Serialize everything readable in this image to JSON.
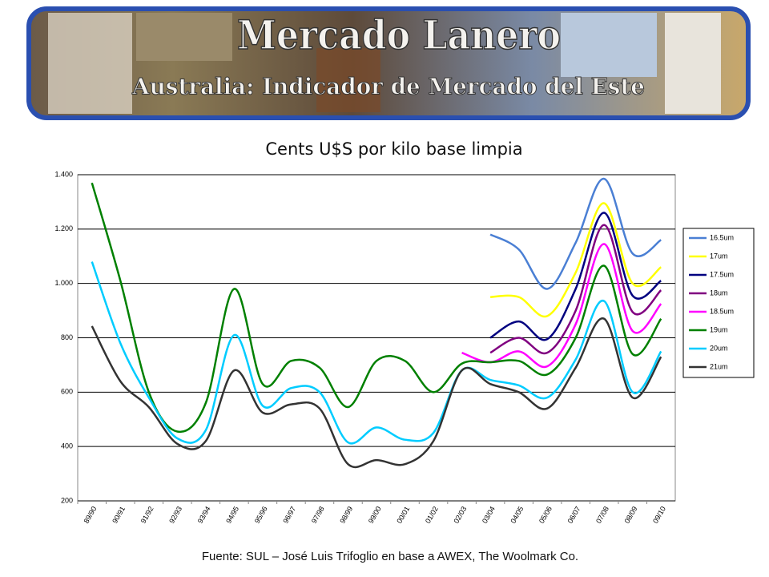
{
  "banner": {
    "title": "Mercado Lanero",
    "subtitle": "Australia: Indicador de Mercado del Este"
  },
  "chart_data": {
    "type": "line",
    "title": "Cents U$S por kilo base limpia",
    "categories": [
      "89/90",
      "90/91",
      "91/92",
      "92/93",
      "93/94",
      "94/95",
      "95/96",
      "96/97",
      "97/98",
      "98/99",
      "99/00",
      "00/01",
      "01/02",
      "02/03",
      "03/04",
      "04/05",
      "05/06",
      "06/07",
      "07/08",
      "08/09",
      "09/10"
    ],
    "series": [
      {
        "name": "16.5um",
        "color": "#4a7fd4",
        "values": [
          null,
          null,
          null,
          null,
          null,
          null,
          null,
          null,
          null,
          null,
          null,
          null,
          null,
          null,
          1180,
          1125,
          980,
          1150,
          1385,
          1110,
          1160
        ]
      },
      {
        "name": "17um",
        "color": "#ffff00",
        "values": [
          null,
          null,
          null,
          null,
          null,
          null,
          null,
          null,
          null,
          null,
          null,
          null,
          null,
          null,
          950,
          950,
          880,
          1040,
          1295,
          1000,
          1060
        ]
      },
      {
        "name": "17.5um",
        "color": "#000080",
        "values": [
          null,
          null,
          null,
          null,
          null,
          null,
          null,
          null,
          null,
          null,
          null,
          null,
          null,
          null,
          800,
          860,
          795,
          980,
          1260,
          955,
          1010
        ]
      },
      {
        "name": "18um",
        "color": "#800080",
        "values": [
          null,
          null,
          null,
          null,
          null,
          null,
          null,
          null,
          null,
          null,
          null,
          null,
          null,
          null,
          745,
          800,
          745,
          900,
          1215,
          895,
          975
        ]
      },
      {
        "name": "18.5um",
        "color": "#ff00ff",
        "values": [
          null,
          null,
          null,
          null,
          null,
          null,
          null,
          null,
          null,
          null,
          null,
          null,
          null,
          745,
          710,
          750,
          695,
          850,
          1145,
          825,
          925
        ]
      },
      {
        "name": "19um",
        "color": "#008000",
        "values": [
          1370,
          1010,
          600,
          455,
          560,
          980,
          630,
          715,
          690,
          545,
          715,
          715,
          600,
          705,
          710,
          715,
          665,
          800,
          1065,
          740,
          870
        ]
      },
      {
        "name": "20um",
        "color": "#00ccff",
        "values": [
          1080,
          780,
          580,
          430,
          460,
          810,
          550,
          615,
          600,
          415,
          470,
          425,
          450,
          680,
          645,
          625,
          580,
          720,
          935,
          600,
          750
        ]
      },
      {
        "name": "21um",
        "color": "#333333",
        "values": [
          843,
          640,
          545,
          410,
          420,
          680,
          525,
          555,
          540,
          335,
          350,
          335,
          420,
          680,
          630,
          600,
          540,
          690,
          870,
          580,
          730
        ]
      }
    ],
    "ylim": [
      200,
      1400
    ],
    "yticks": [
      200,
      400,
      600,
      800,
      {
        "value": 1000,
        "label": "1.000"
      },
      {
        "value": 1200,
        "label": "1.200"
      },
      {
        "value": 1400,
        "label": "1.400"
      }
    ],
    "grid": true,
    "legend": "right"
  },
  "footer": "Fuente: SUL – José Luis Trifoglio en base a AWEX, The Woolmark Co."
}
